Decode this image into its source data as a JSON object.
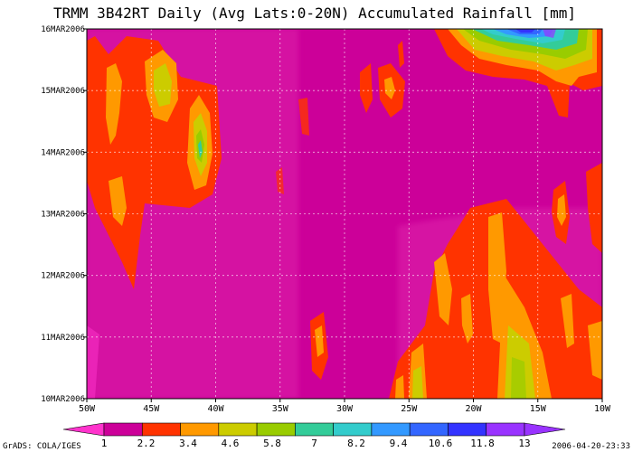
{
  "chart_data": {
    "type": "heatmap",
    "title": "TRMM 3B42RT Daily (Avg Lats:0-20N) Accumulated Rainfall [mm]",
    "x_tick_labels": [
      "50W",
      "45W",
      "40W",
      "35W",
      "30W",
      "25W",
      "20W",
      "15W",
      "10W"
    ],
    "x_ticks": [
      -50,
      -45,
      -40,
      -35,
      -30,
      -25,
      -20,
      -15,
      -10
    ],
    "xlim": [
      -50,
      -10
    ],
    "y_tick_labels": [
      "10MAR2006",
      "11MAR2006",
      "12MAR2006",
      "13MAR2006",
      "14MAR2006",
      "15MAR2006",
      "16MAR2006"
    ],
    "y_ticks": [
      0,
      1,
      2,
      3,
      4,
      5,
      6
    ],
    "ylim": [
      0,
      6
    ],
    "grid": true,
    "colorbar": {
      "labels": [
        "1",
        "2.2",
        "3.4",
        "4.6",
        "5.8",
        "7",
        "8.2",
        "9.4",
        "10.6",
        "11.8",
        "13"
      ],
      "colors": [
        "#ff33cc",
        "#cc0099",
        "#ff3300",
        "#ff9900",
        "#cccc00",
        "#99cc00",
        "#33cc99",
        "#33cccc",
        "#3399ff",
        "#3366ff",
        "#3333ff",
        "#9933ff"
      ]
    },
    "features": [
      {
        "lon": -45.5,
        "day": 4.6,
        "value": 5.0
      },
      {
        "lon": -46.5,
        "day": 3.4,
        "value": 3.8
      },
      {
        "lon": -41.5,
        "day": 4.0,
        "value": 6.8
      },
      {
        "lon": -27.5,
        "day": 5.1,
        "value": 4.6
      },
      {
        "lon": -23.0,
        "day": 1.8,
        "value": 4.0
      },
      {
        "lon": -21.5,
        "day": 1.2,
        "value": 4.0
      },
      {
        "lon": -18.0,
        "day": 0.6,
        "value": 5.2
      },
      {
        "lon": -25.5,
        "day": 0.2,
        "value": 4.0
      },
      {
        "lon": -31.0,
        "day": 0.4,
        "value": 3.8
      },
      {
        "lon": -15.0,
        "day": 5.8,
        "value": 11.8
      },
      {
        "lon": -18.0,
        "day": 5.8,
        "value": 9.0
      },
      {
        "lon": -13.0,
        "day": 3.0,
        "value": 3.4
      }
    ]
  },
  "footer": {
    "left": "GrADS: COLA/IGES",
    "right": "2006-04-20-23:33"
  }
}
